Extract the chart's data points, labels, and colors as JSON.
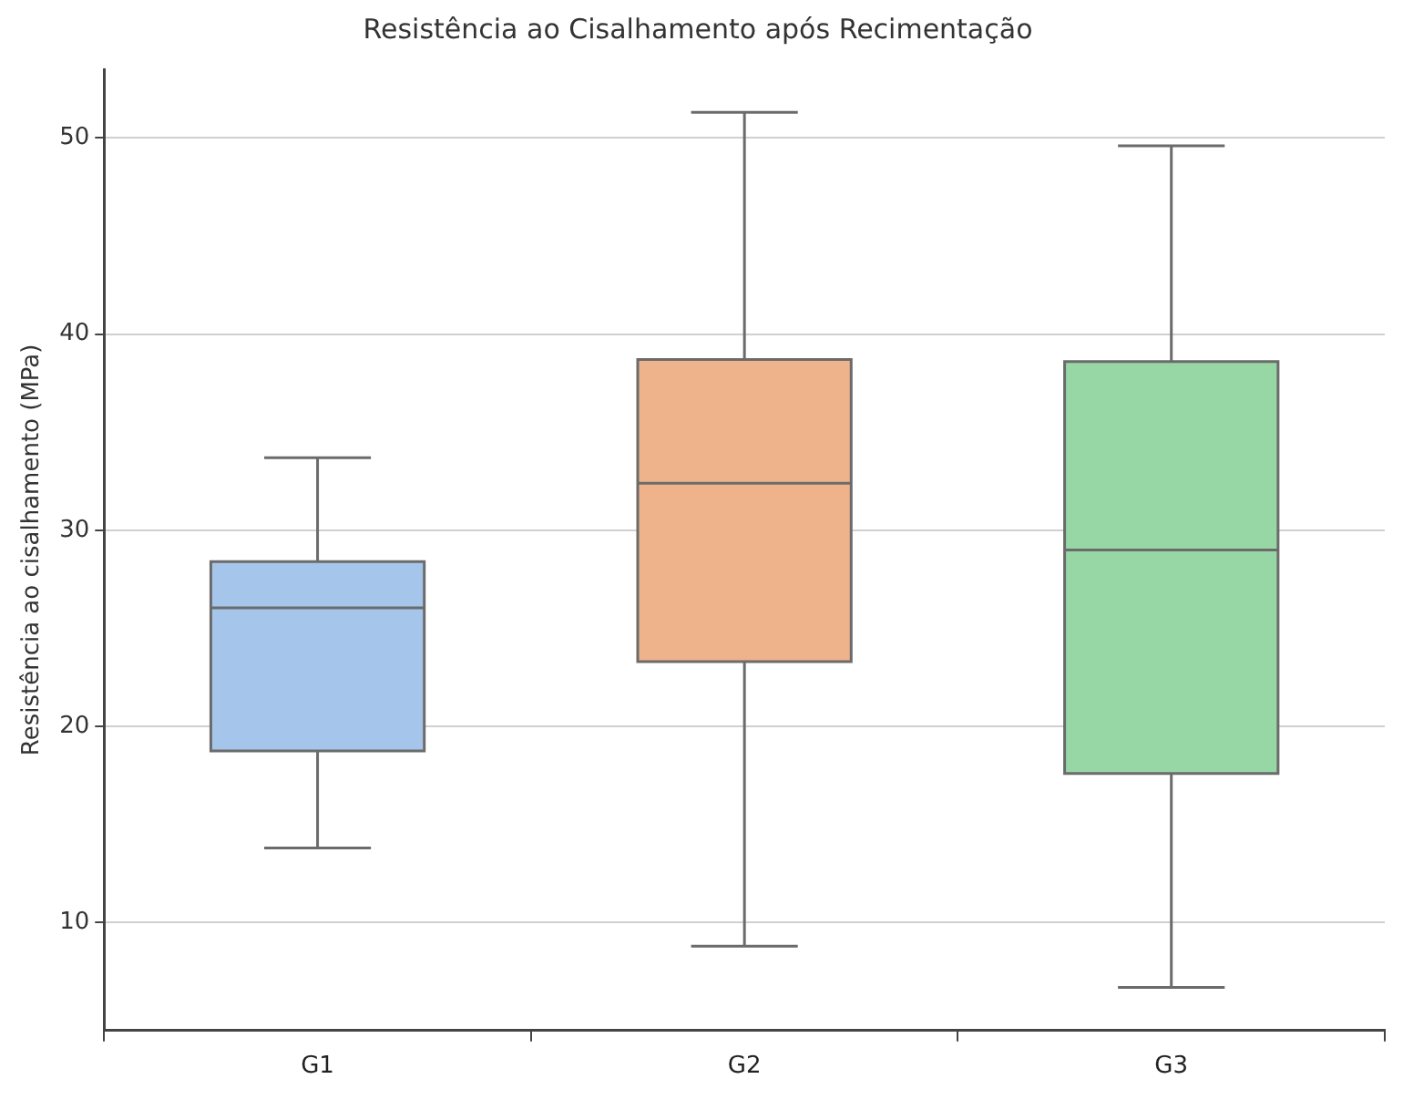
{
  "chart_data": {
    "type": "box",
    "title": "Resistência ao Cisalhamento após Recimentação",
    "ylabel": "Resistência ao cisalhamento (MPa)",
    "categories": [
      "G1",
      "G2",
      "G3"
    ],
    "colors": [
      "#a6c5ea",
      "#eeb38b",
      "#97d7a5"
    ],
    "boxes": [
      {
        "low": 13.8,
        "q1": 18.75,
        "median": 26.05,
        "q3": 28.4,
        "high": 33.7
      },
      {
        "low": 8.8,
        "q1": 23.3,
        "median": 32.4,
        "q3": 38.7,
        "high": 51.3
      },
      {
        "low": 6.7,
        "q1": 17.6,
        "median": 29.0,
        "q3": 38.6,
        "high": 49.6
      }
    ],
    "ylim": [
      4.5,
      53.5
    ],
    "yticks": [
      10,
      20,
      30,
      40,
      50
    ],
    "grid": "y",
    "legend": false
  }
}
